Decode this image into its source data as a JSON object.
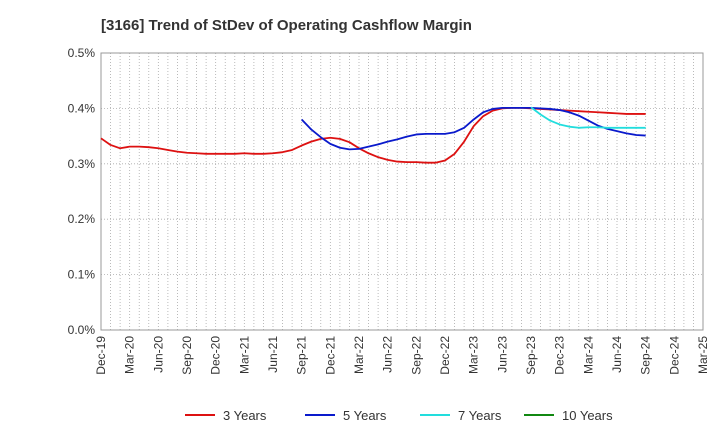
{
  "chart_data": {
    "type": "line",
    "title": "[3166]  Trend of StDev of Operating Cashflow Margin",
    "xlabel": "",
    "ylabel": "",
    "x_ticks": [
      "Dec-19",
      "Mar-20",
      "Jun-20",
      "Sep-20",
      "Dec-20",
      "Mar-21",
      "Jun-21",
      "Sep-21",
      "Dec-21",
      "Mar-22",
      "Jun-22",
      "Sep-22",
      "Dec-22",
      "Mar-23",
      "Jun-23",
      "Sep-23",
      "Dec-23",
      "Mar-24",
      "Jun-24",
      "Sep-24",
      "Dec-24",
      "Mar-25"
    ],
    "y_ticks": [
      "0.0%",
      "0.1%",
      "0.2%",
      "0.3%",
      "0.4%",
      "0.5%"
    ],
    "ylim": [
      0,
      0.5
    ],
    "y_unit": "%",
    "grid": true,
    "legend_position": "bottom",
    "series": [
      {
        "name": "3 Years",
        "color": "#dd1111",
        "x": [
          "Dec-19",
          "Jan-20",
          "Feb-20",
          "Mar-20",
          "Apr-20",
          "May-20",
          "Jun-20",
          "Jul-20",
          "Aug-20",
          "Sep-20",
          "Oct-20",
          "Nov-20",
          "Dec-20",
          "Jan-21",
          "Feb-21",
          "Mar-21",
          "Apr-21",
          "May-21",
          "Jun-21",
          "Jul-21",
          "Aug-21",
          "Sep-21",
          "Oct-21",
          "Nov-21",
          "Dec-21",
          "Jan-22",
          "Feb-22",
          "Mar-22",
          "Apr-22",
          "May-22",
          "Jun-22",
          "Jul-22",
          "Aug-22",
          "Sep-22",
          "Oct-22",
          "Nov-22",
          "Dec-22",
          "Jan-23",
          "Feb-23",
          "Mar-23",
          "Apr-23",
          "May-23",
          "Jun-23",
          "Jul-23",
          "Aug-23",
          "Sep-23",
          "Oct-23",
          "Nov-23",
          "Dec-23",
          "Jan-24",
          "Feb-24",
          "Mar-24",
          "Apr-24",
          "May-24",
          "Jun-24",
          "Jul-24",
          "Aug-24",
          "Sep-24"
        ],
        "values": [
          0.346,
          0.334,
          0.328,
          0.331,
          0.331,
          0.33,
          0.328,
          0.325,
          0.322,
          0.32,
          0.319,
          0.318,
          0.318,
          0.318,
          0.318,
          0.319,
          0.318,
          0.318,
          0.319,
          0.321,
          0.325,
          0.333,
          0.34,
          0.345,
          0.347,
          0.345,
          0.339,
          0.328,
          0.319,
          0.312,
          0.307,
          0.304,
          0.303,
          0.303,
          0.302,
          0.302,
          0.306,
          0.318,
          0.34,
          0.368,
          0.386,
          0.396,
          0.4,
          0.401,
          0.401,
          0.4,
          0.399,
          0.398,
          0.397,
          0.396,
          0.395,
          0.394,
          0.393,
          0.392,
          0.391,
          0.39,
          0.39,
          0.39
        ]
      },
      {
        "name": "5 Years",
        "color": "#0a1acc",
        "x": [
          "Sep-21",
          "Oct-21",
          "Nov-21",
          "Dec-21",
          "Jan-22",
          "Feb-22",
          "Mar-22",
          "Apr-22",
          "May-22",
          "Jun-22",
          "Jul-22",
          "Aug-22",
          "Sep-22",
          "Oct-22",
          "Nov-22",
          "Dec-22",
          "Jan-23",
          "Feb-23",
          "Mar-23",
          "Apr-23",
          "May-23",
          "Jun-23",
          "Jul-23",
          "Aug-23",
          "Sep-23",
          "Oct-23",
          "Nov-23",
          "Dec-23",
          "Jan-24",
          "Feb-24",
          "Mar-24",
          "Apr-24",
          "May-24",
          "Jun-24",
          "Jul-24",
          "Aug-24",
          "Sep-24"
        ],
        "values": [
          0.38,
          0.362,
          0.348,
          0.336,
          0.329,
          0.326,
          0.327,
          0.331,
          0.335,
          0.34,
          0.344,
          0.349,
          0.353,
          0.354,
          0.354,
          0.354,
          0.357,
          0.365,
          0.38,
          0.393,
          0.399,
          0.401,
          0.401,
          0.401,
          0.401,
          0.4,
          0.399,
          0.397,
          0.393,
          0.387,
          0.378,
          0.369,
          0.363,
          0.359,
          0.355,
          0.352,
          0.351
        ]
      },
      {
        "name": "7 Years",
        "color": "#22dddd",
        "x": [
          "Sep-23",
          "Oct-23",
          "Nov-23",
          "Dec-23",
          "Jan-24",
          "Feb-24",
          "Mar-24",
          "Apr-24",
          "May-24",
          "Jun-24",
          "Jul-24",
          "Aug-24",
          "Sep-24"
        ],
        "values": [
          0.402,
          0.389,
          0.378,
          0.371,
          0.367,
          0.365,
          0.366,
          0.366,
          0.365,
          0.365,
          0.365,
          0.365,
          0.365
        ]
      },
      {
        "name": "10 Years",
        "color": "#118811",
        "x": [],
        "values": []
      }
    ]
  }
}
